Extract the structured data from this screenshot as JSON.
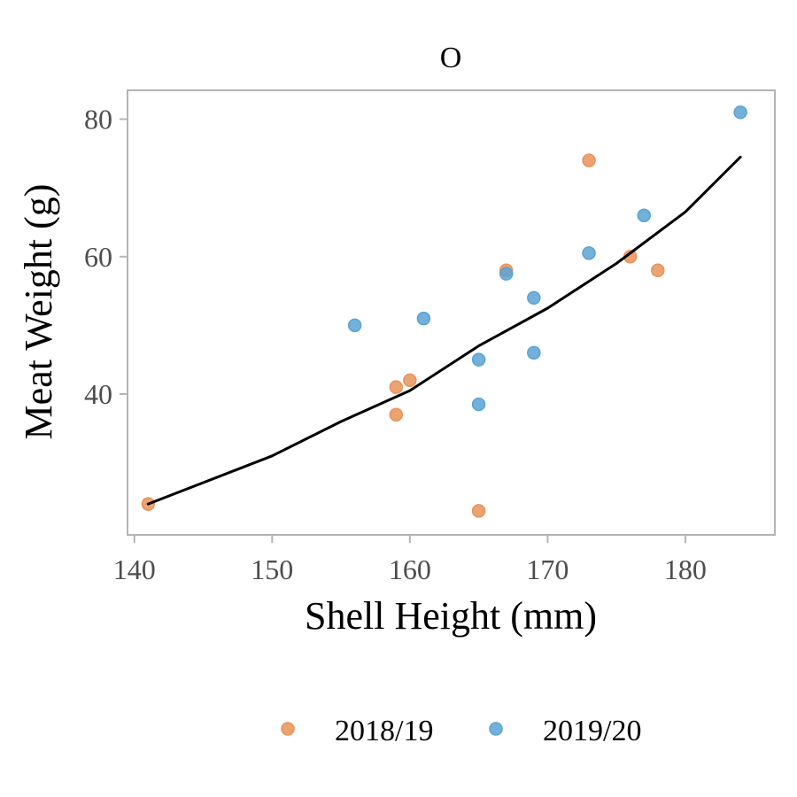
{
  "chart_data": {
    "type": "scatter",
    "title": "O",
    "xlabel": "Shell Height (mm)",
    "ylabel": "Meat Weight (g)",
    "xlim": [
      139.5,
      186.5
    ],
    "ylim": [
      19.5,
      84.2
    ],
    "xticks": [
      140,
      150,
      160,
      170,
      180
    ],
    "yticks": [
      40,
      60,
      80
    ],
    "grid": false,
    "legend_position": "bottom",
    "series": [
      {
        "name": "2018/19",
        "color": "#E8935A",
        "points": [
          {
            "x": 141,
            "y": 24.0
          },
          {
            "x": 159,
            "y": 41.0
          },
          {
            "x": 159,
            "y": 37.0
          },
          {
            "x": 160,
            "y": 42.0
          },
          {
            "x": 165,
            "y": 23.0
          },
          {
            "x": 167,
            "y": 58.0
          },
          {
            "x": 173,
            "y": 74.0
          },
          {
            "x": 176,
            "y": 60.0
          },
          {
            "x": 178,
            "y": 58.0
          }
        ]
      },
      {
        "name": "2019/20",
        "color": "#5AA3D4",
        "points": [
          {
            "x": 156,
            "y": 50.0
          },
          {
            "x": 161,
            "y": 51.0
          },
          {
            "x": 165,
            "y": 45.0
          },
          {
            "x": 165,
            "y": 38.5
          },
          {
            "x": 167,
            "y": 57.5
          },
          {
            "x": 169,
            "y": 54.0
          },
          {
            "x": 169,
            "y": 46.0
          },
          {
            "x": 173,
            "y": 60.5
          },
          {
            "x": 177,
            "y": 66.0
          },
          {
            "x": 184,
            "y": 81.0
          }
        ]
      }
    ],
    "fit_line": {
      "color": "#000000",
      "points": [
        {
          "x": 141,
          "y": 24.0
        },
        {
          "x": 150,
          "y": 31.0
        },
        {
          "x": 155,
          "y": 36.0
        },
        {
          "x": 160,
          "y": 40.5
        },
        {
          "x": 165,
          "y": 47.0
        },
        {
          "x": 170,
          "y": 52.5
        },
        {
          "x": 175,
          "y": 59.0
        },
        {
          "x": 180,
          "y": 66.5
        },
        {
          "x": 184,
          "y": 74.5
        }
      ]
    }
  }
}
